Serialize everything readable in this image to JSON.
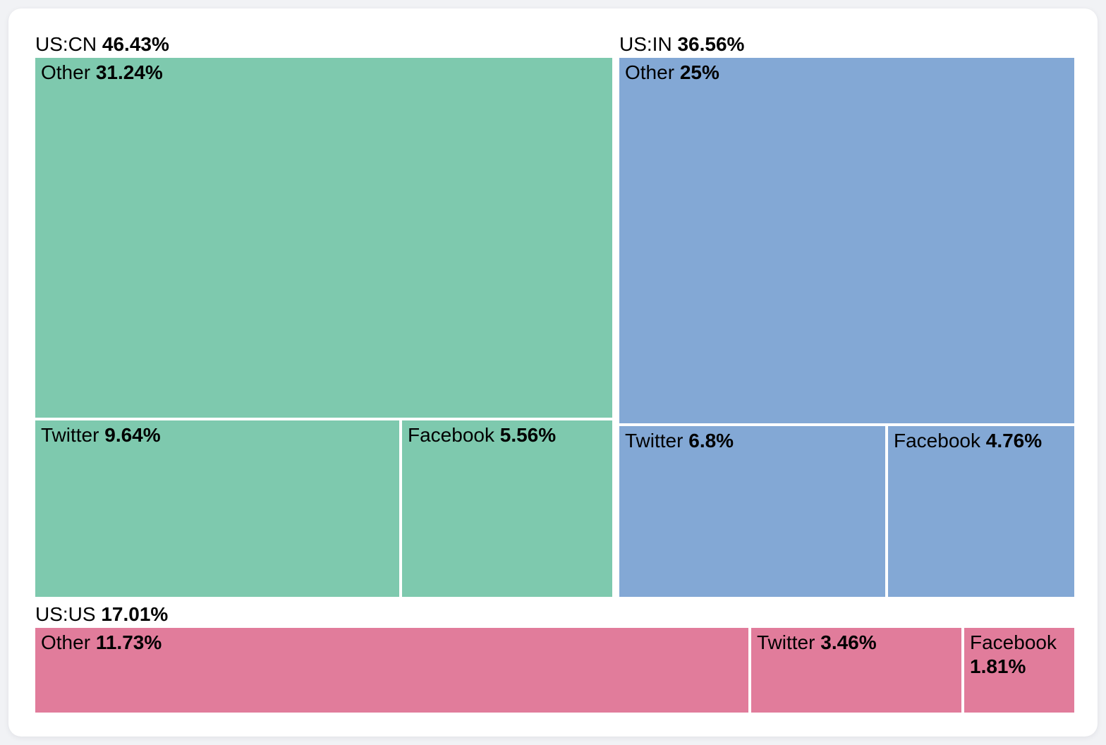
{
  "chart_data": {
    "type": "treemap",
    "title": "",
    "legend": false,
    "text_color": "#000000",
    "gap_color": "#ffffff",
    "groups": [
      {
        "label": "US:CN",
        "value": 46.43,
        "value_label": "46.43%",
        "color": "#7ec9ae",
        "children": [
          {
            "label": "Other",
            "value": 31.24,
            "value_label": "31.24%"
          },
          {
            "label": "Twitter",
            "value": 9.64,
            "value_label": "9.64%"
          },
          {
            "label": "Facebook",
            "value": 5.56,
            "value_label": "5.56%"
          }
        ]
      },
      {
        "label": "US:IN",
        "value": 36.56,
        "value_label": "36.56%",
        "color": "#83a8d5",
        "children": [
          {
            "label": "Other",
            "value": 25,
            "value_label": "25%"
          },
          {
            "label": "Twitter",
            "value": 6.8,
            "value_label": "6.8%"
          },
          {
            "label": "Facebook",
            "value": 4.76,
            "value_label": "4.76%"
          }
        ]
      },
      {
        "label": "US:US",
        "value": 17.01,
        "value_label": "17.01%",
        "color": "#e17c9b",
        "children": [
          {
            "label": "Other",
            "value": 11.73,
            "value_label": "11.73%"
          },
          {
            "label": "Twitter",
            "value": 3.46,
            "value_label": "3.46%"
          },
          {
            "label": "Facebook",
            "value": 1.81,
            "value_label": "1.81%"
          }
        ]
      }
    ]
  }
}
